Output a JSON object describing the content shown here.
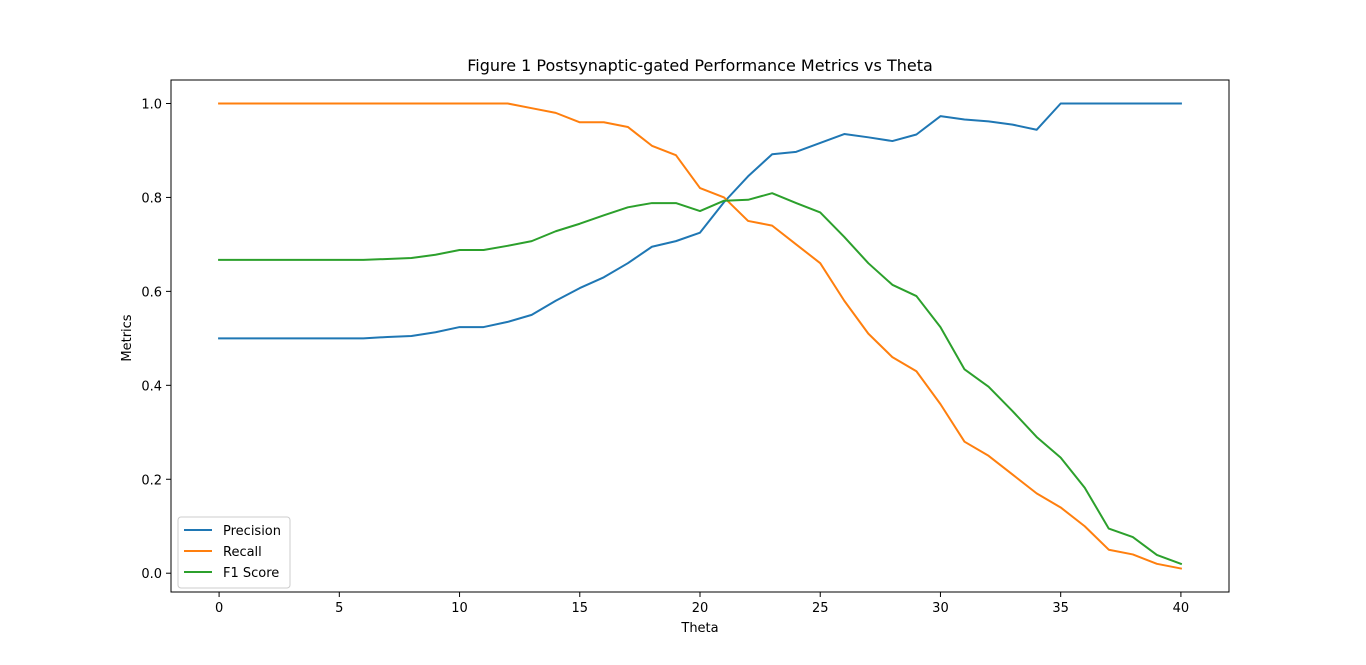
{
  "chart_data": {
    "type": "line",
    "title": "Figure 1 Postsynaptic-gated Performance Metrics vs Theta",
    "xlabel": "Theta",
    "ylabel": "Metrics",
    "xlim": [
      -2,
      42
    ],
    "ylim": [
      -0.04,
      1.05
    ],
    "xticks": [
      0,
      5,
      10,
      15,
      20,
      25,
      30,
      35,
      40
    ],
    "yticks": [
      0.0,
      0.2,
      0.4,
      0.6,
      0.8,
      1.0
    ],
    "xtick_labels": [
      "0",
      "5",
      "10",
      "15",
      "20",
      "25",
      "30",
      "35",
      "40"
    ],
    "ytick_labels": [
      "0.0",
      "0.2",
      "0.4",
      "0.6",
      "0.8",
      "1.0"
    ],
    "grid": false,
    "legend_position": "lower-left",
    "x": [
      0,
      1,
      2,
      3,
      4,
      5,
      6,
      7,
      8,
      9,
      10,
      11,
      12,
      13,
      14,
      15,
      16,
      17,
      18,
      19,
      20,
      21,
      22,
      23,
      24,
      25,
      26,
      27,
      28,
      29,
      30,
      31,
      32,
      33,
      34,
      35,
      36,
      37,
      38,
      39,
      40
    ],
    "series": [
      {
        "name": "Precision",
        "color": "#1f77b4",
        "values": [
          0.5,
          0.5,
          0.5,
          0.5,
          0.5,
          0.5,
          0.5,
          0.503,
          0.505,
          0.513,
          0.524,
          0.524,
          0.535,
          0.55,
          0.58,
          0.607,
          0.63,
          0.66,
          0.695,
          0.707,
          0.725,
          0.79,
          0.845,
          0.892,
          0.897,
          0.916,
          0.935,
          0.928,
          0.92,
          0.934,
          0.973,
          0.966,
          0.962,
          0.955,
          0.944,
          1.0,
          1.0,
          1.0,
          1.0,
          1.0,
          1.0
        ]
      },
      {
        "name": "Recall",
        "color": "#ff7f0e",
        "values": [
          1.0,
          1.0,
          1.0,
          1.0,
          1.0,
          1.0,
          1.0,
          1.0,
          1.0,
          1.0,
          1.0,
          1.0,
          1.0,
          0.99,
          0.98,
          0.96,
          0.96,
          0.95,
          0.91,
          0.89,
          0.82,
          0.8,
          0.75,
          0.74,
          0.7,
          0.66,
          0.58,
          0.51,
          0.46,
          0.43,
          0.36,
          0.28,
          0.25,
          0.21,
          0.17,
          0.14,
          0.1,
          0.05,
          0.04,
          0.02,
          0.01
        ]
      },
      {
        "name": "F1 Score",
        "color": "#2ca02c",
        "values": [
          0.667,
          0.667,
          0.667,
          0.667,
          0.667,
          0.667,
          0.667,
          0.669,
          0.671,
          0.678,
          0.688,
          0.688,
          0.697,
          0.707,
          0.728,
          0.744,
          0.762,
          0.779,
          0.788,
          0.788,
          0.771,
          0.793,
          0.795,
          0.809,
          0.788,
          0.768,
          0.716,
          0.66,
          0.614,
          0.59,
          0.524,
          0.434,
          0.397,
          0.345,
          0.29,
          0.246,
          0.182,
          0.095,
          0.077,
          0.039,
          0.02
        ]
      }
    ]
  }
}
